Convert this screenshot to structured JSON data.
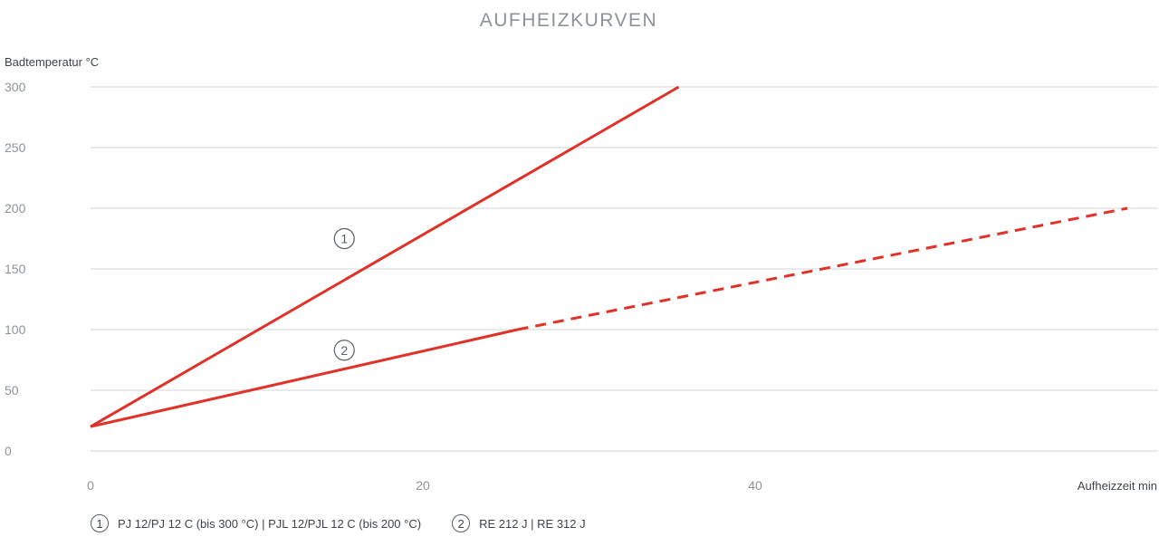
{
  "chart_data": {
    "type": "line",
    "title": "AUFHEIZKURVEN",
    "ylabel": "Badtemperatur °C",
    "xlabel": "Aufheizzeit min",
    "xlim": [
      0,
      64
    ],
    "ylim": [
      0,
      300
    ],
    "x_ticks": [
      "0",
      "20",
      "40"
    ],
    "y_ticks": [
      "0",
      "50",
      "100",
      "150",
      "200",
      "250",
      "300"
    ],
    "x_tick_values": [
      0,
      20,
      40
    ],
    "y_tick_values": [
      0,
      50,
      100,
      150,
      200,
      250,
      300
    ],
    "grid": true,
    "series": [
      {
        "name": "PJ 12/PJ 12 C (bis 300 °C) | PJL 12/PJL 12 C (bis 200 °C)",
        "marker": "1",
        "color": "#e03228",
        "points": [
          [
            0,
            20
          ],
          [
            35.4,
            300
          ]
        ],
        "dashed_from": null,
        "label_at": [
          15,
          175
        ]
      },
      {
        "name": "RE 212 J | RE 312 J",
        "marker": "2",
        "color": "#e03228",
        "points": [
          [
            0,
            20
          ],
          [
            25.7,
            100
          ],
          [
            62.4,
            200
          ]
        ],
        "dashed_from": 1,
        "label_at": [
          15,
          83
        ]
      }
    ]
  },
  "legend": [
    {
      "num": "1",
      "text": "PJ 12/PJ 12 C (bis 300 °C) | PJL 12/PJL 12 C (bis 200 °C)"
    },
    {
      "num": "2",
      "text": "RE 212 J | RE 312 J"
    }
  ]
}
